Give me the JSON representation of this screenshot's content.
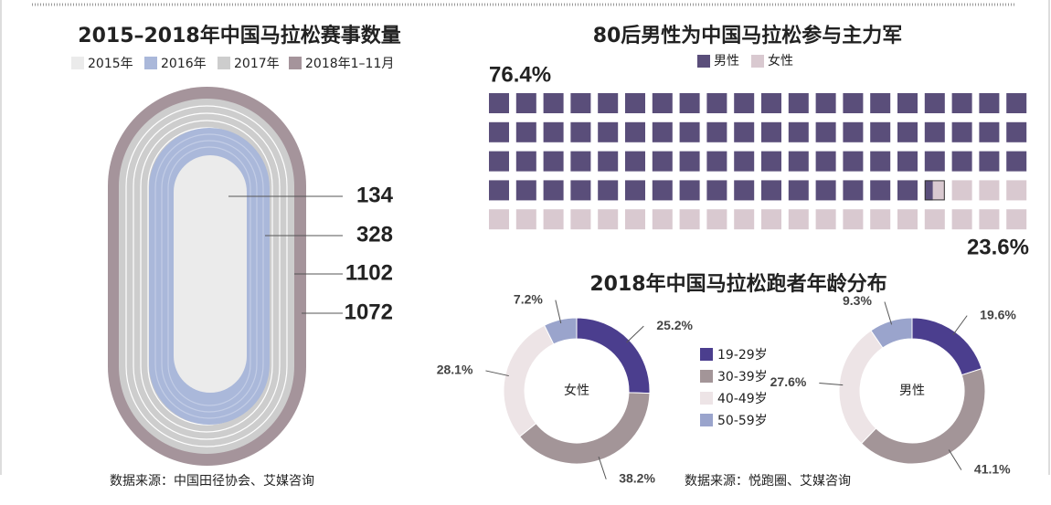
{
  "chart_data": [
    {
      "type": "track",
      "title": "2015–2018年中国马拉松赛事数量",
      "series": [
        {
          "name": "2015年",
          "color": "#ebebeb",
          "values": [
            134
          ]
        },
        {
          "name": "2016年",
          "color": "#aab8da",
          "values": [
            328
          ]
        },
        {
          "name": "2017年",
          "color": "#cdcdcd",
          "values": [
            1102
          ]
        },
        {
          "name": "2018年1–11月",
          "color": "#a5949b",
          "values": [
            1072
          ]
        }
      ],
      "source": "数据来源：中国田径协会、艾媒咨询"
    },
    {
      "type": "waffle",
      "title": "80后男性为中国马拉松参与主力军",
      "series": [
        {
          "name": "男性",
          "color": "#5a4e7a",
          "values": [
            76.4
          ],
          "value_labels": [
            "76.4%"
          ]
        },
        {
          "name": "女性",
          "color": "#d9c9d0",
          "values": [
            23.6
          ],
          "value_labels": [
            "23.6%"
          ]
        }
      ]
    },
    {
      "type": "donut",
      "title": "2018年中国马拉松跑者年龄分布",
      "center_label": "女性",
      "categories": [
        "19-29岁",
        "30-39岁",
        "40-49岁",
        "50-59岁"
      ],
      "colors": [
        "#4b3e8e",
        "#a39598",
        "#ede4e6",
        "#9aa4cc"
      ],
      "values": [
        25.2,
        38.2,
        28.1,
        7.2
      ],
      "value_labels": [
        "25.2%",
        "38.2%",
        "28.1%",
        "7.2%"
      ]
    },
    {
      "type": "donut",
      "center_label": "男性",
      "colors": [
        "#4b3e8e",
        "#a39598",
        "#ede4e6",
        "#9aa4cc"
      ],
      "values": [
        19.6,
        41.1,
        27.6,
        9.3
      ],
      "value_labels": [
        "19.6%",
        "41.1%",
        "27.6%",
        "9.3%"
      ],
      "source": "数据来源：悦跑圈、艾媒咨询"
    }
  ]
}
